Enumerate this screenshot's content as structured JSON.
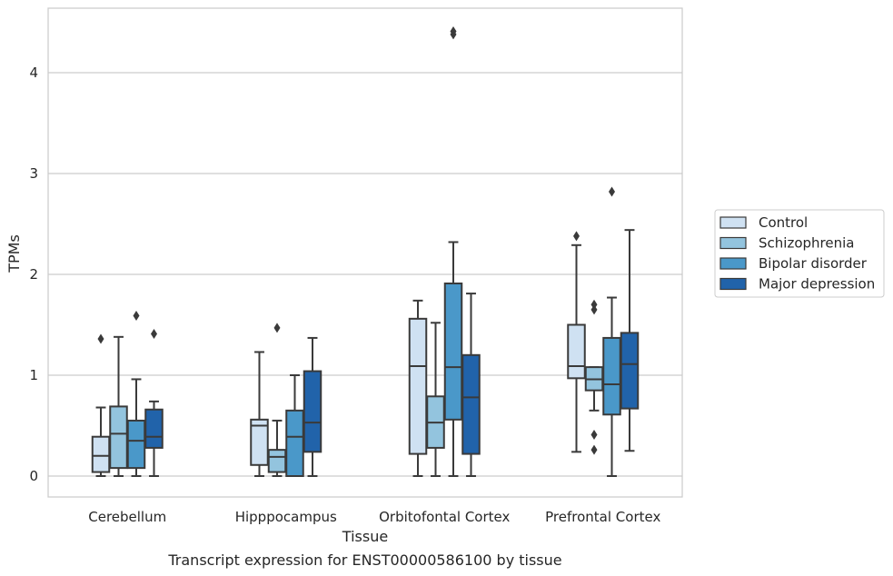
{
  "chart_data": {
    "type": "box",
    "title": "",
    "caption": "Transcript expression for ENST00000586100 by tissue",
    "xlabel": "Tissue",
    "ylabel": "TPMs",
    "ylim": [
      -0.2,
      4.65
    ],
    "yticks": [
      0,
      1,
      2,
      3,
      4
    ],
    "grid": "horizontal",
    "legend_position": "right",
    "categories": [
      "Cerebellum",
      "Hipppocampus",
      "Orbitofontal Cortex",
      "Prefrontal Cortex"
    ],
    "series": [
      {
        "name": "Control",
        "color": "#cfe1f2",
        "boxes": [
          {
            "whislo": 0.0,
            "q1": 0.04,
            "med": 0.2,
            "q3": 0.39,
            "whishi": 0.68,
            "fliers": [
              1.36
            ]
          },
          {
            "whislo": 0.0,
            "q1": 0.11,
            "med": 0.5,
            "q3": 0.56,
            "whishi": 1.23,
            "fliers": []
          },
          {
            "whislo": 0.0,
            "q1": 0.22,
            "med": 1.09,
            "q3": 1.56,
            "whishi": 1.74,
            "fliers": []
          },
          {
            "whislo": 0.24,
            "q1": 0.97,
            "med": 1.09,
            "q3": 1.5,
            "whishi": 2.29,
            "fliers": [
              2.38
            ]
          }
        ]
      },
      {
        "name": "Schizophrenia",
        "color": "#93c4de",
        "boxes": [
          {
            "whislo": 0.0,
            "q1": 0.08,
            "med": 0.42,
            "q3": 0.69,
            "whishi": 1.38,
            "fliers": []
          },
          {
            "whislo": 0.0,
            "q1": 0.04,
            "med": 0.19,
            "q3": 0.26,
            "whishi": 0.55,
            "fliers": [
              1.47
            ]
          },
          {
            "whislo": 0.0,
            "q1": 0.28,
            "med": 0.53,
            "q3": 0.79,
            "whishi": 1.52,
            "fliers": []
          },
          {
            "whislo": 0.65,
            "q1": 0.85,
            "med": 0.96,
            "q3": 1.08,
            "whishi": 1.08,
            "fliers": [
              1.7,
              1.65,
              0.41,
              0.26
            ]
          }
        ]
      },
      {
        "name": "Bipolar disorder",
        "color": "#4a98c9",
        "boxes": [
          {
            "whislo": 0.0,
            "q1": 0.08,
            "med": 0.35,
            "q3": 0.55,
            "whishi": 0.96,
            "fliers": [
              1.59
            ]
          },
          {
            "whislo": 0.0,
            "q1": 0.0,
            "med": 0.39,
            "q3": 0.65,
            "whishi": 1.0,
            "fliers": []
          },
          {
            "whislo": 0.0,
            "q1": 0.56,
            "med": 1.08,
            "q3": 1.91,
            "whishi": 2.32,
            "fliers": [
              4.38,
              4.41
            ]
          },
          {
            "whislo": 0.0,
            "q1": 0.61,
            "med": 0.91,
            "q3": 1.37,
            "whishi": 1.77,
            "fliers": [
              2.82
            ]
          }
        ]
      },
      {
        "name": "Major depression",
        "color": "#2163aa",
        "boxes": [
          {
            "whislo": 0.0,
            "q1": 0.28,
            "med": 0.39,
            "q3": 0.66,
            "whishi": 0.74,
            "fliers": [
              1.41
            ]
          },
          {
            "whislo": 0.0,
            "q1": 0.24,
            "med": 0.53,
            "q3": 1.04,
            "whishi": 1.37,
            "fliers": []
          },
          {
            "whislo": 0.0,
            "q1": 0.22,
            "med": 0.78,
            "q3": 1.2,
            "whishi": 1.81,
            "fliers": []
          },
          {
            "whislo": 0.25,
            "q1": 0.67,
            "med": 1.11,
            "q3": 1.42,
            "whishi": 2.44,
            "fliers": []
          }
        ]
      }
    ]
  }
}
